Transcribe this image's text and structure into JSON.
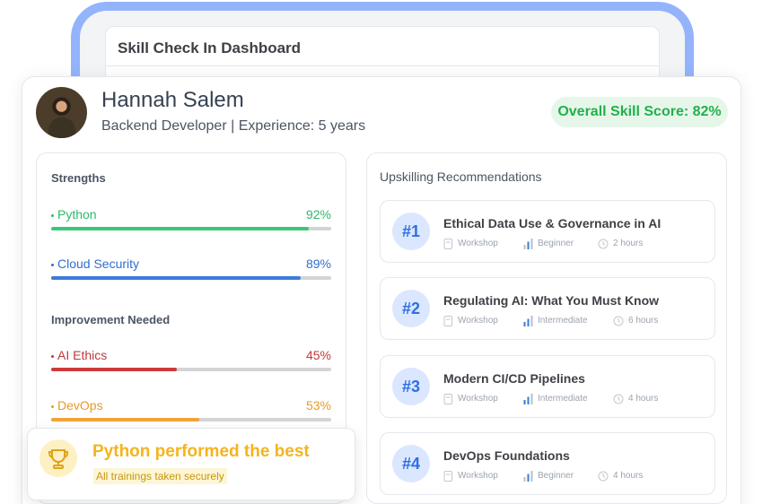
{
  "dashboard": {
    "title": "Skill Check In Dashboard"
  },
  "profile": {
    "name": "Hannah Salem",
    "subtitle": "Backend Developer | Experience: 5 years",
    "score_label": "Overall Skill Score: 82%",
    "score_value": 82
  },
  "strengths": {
    "title": "Strengths",
    "items": [
      {
        "label": "Python",
        "percent_label": "92%",
        "value": 92,
        "color": "#2fb86a",
        "bar_color": "#3cc776"
      },
      {
        "label": "Cloud Security",
        "percent_label": "89%",
        "value": 89,
        "color": "#2f6fcf",
        "bar_color": "#3a7bd8"
      }
    ]
  },
  "improvement": {
    "title": "Improvement Needed",
    "items": [
      {
        "label": "AI Ethics",
        "percent_label": "45%",
        "value": 45,
        "color": "#c0393b",
        "bar_color": "#cc3b3b"
      },
      {
        "label": "DevOps",
        "percent_label": "53%",
        "value": 53,
        "color": "#e79a2a",
        "bar_color": "#f0a33a"
      }
    ]
  },
  "recommendations": {
    "title": "Upskilling Recommendations",
    "items": [
      {
        "rank": "#1",
        "title": "Ethical Data Use & Governance in AI",
        "type": "Workshop",
        "level": "Beginner",
        "duration": "2 hours"
      },
      {
        "rank": "#2",
        "title": "Regulating AI: What You Must Know",
        "type": "Workshop",
        "level": "Intermediate",
        "duration": "6 hours"
      },
      {
        "rank": "#3",
        "title": "Modern CI/CD Pipelines",
        "type": "Workshop",
        "level": "Intermediate",
        "duration": "4 hours"
      },
      {
        "rank": "#4",
        "title": "DevOps Foundations",
        "type": "Workshop",
        "level": "Beginner",
        "duration": "4 hours"
      }
    ]
  },
  "highlight": {
    "title": "Python performed the best",
    "subtitle": "All trainings taken securely",
    "icon": "trophy-icon"
  },
  "colors": {
    "accent_blue": "#93b4fb",
    "score_green": "#22b04b",
    "rank_blue": "#2f6fe3",
    "highlight_gold": "#f5b41c"
  }
}
